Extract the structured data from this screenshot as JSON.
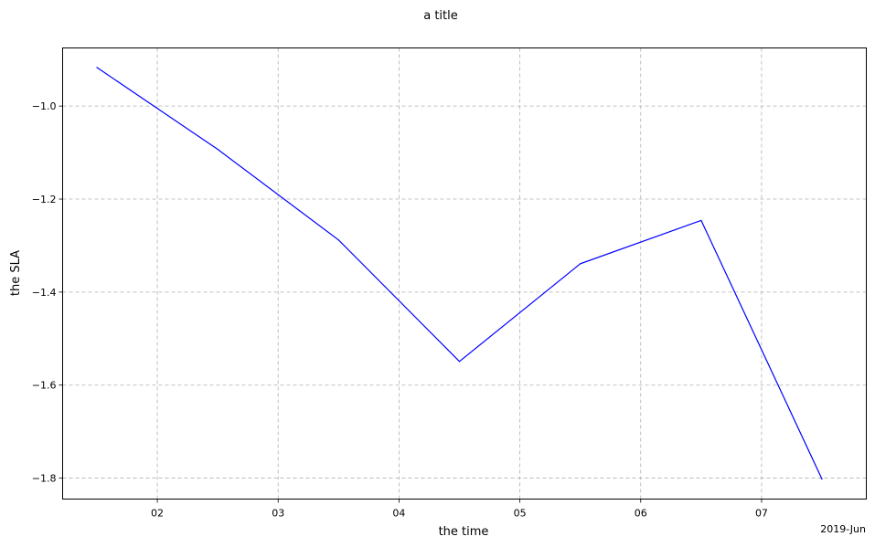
{
  "chart_data": {
    "type": "line",
    "title": "a title",
    "xlabel": "the time",
    "ylabel": "the SLA",
    "x_offset_label": "2019-Jun",
    "x_tick_labels": [
      "02",
      "03",
      "04",
      "05",
      "06",
      "07"
    ],
    "y_tick_labels": [
      "−1.0",
      "−1.2",
      "−1.4",
      "−1.6",
      "−1.8"
    ],
    "y_ticks": [
      -1.0,
      -1.2,
      -1.4,
      -1.6,
      -1.8
    ],
    "xlim": [
      "2019-06-01 05:12",
      "2019-06-07 20:48"
    ],
    "ylim": [
      -1.845,
      -0.875
    ],
    "grid": true,
    "grid_style": "dashed",
    "series": [
      {
        "color": "#0000ff",
        "x": [
          "2019-06-01 12:00",
          "2019-06-02 12:00",
          "2019-06-03 12:00",
          "2019-06-04 12:00",
          "2019-06-05 12:00",
          "2019-06-06 12:00",
          "2019-06-07 12:00"
        ],
        "values": [
          -0.917,
          -1.093,
          -1.288,
          -1.549,
          -1.339,
          -1.246,
          -1.802
        ]
      }
    ]
  }
}
